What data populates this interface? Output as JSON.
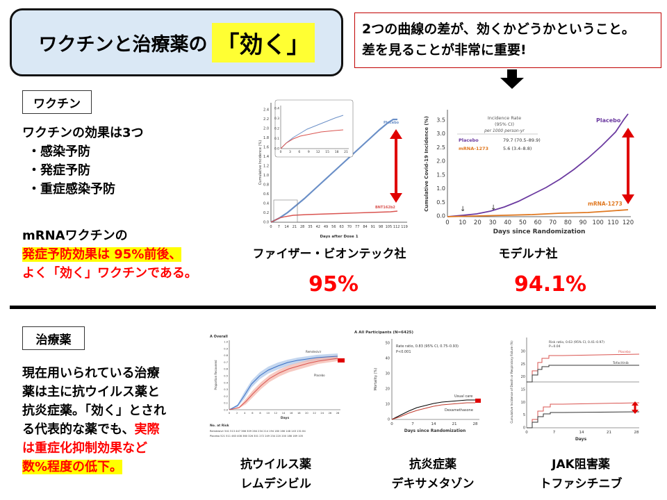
{
  "title": {
    "text": "ワクチンと治療薬の",
    "highlight": "「効く」"
  },
  "note": {
    "line1": "2つの曲線の差が、効くかどうかということ。",
    "line2": "差を見ることが非常に重要!"
  },
  "vaccine": {
    "label": "ワクチン",
    "intro": "ワクチンの効果は3つ",
    "effects": [
      "・感染予防",
      "・発症予防",
      "・重症感染予防"
    ],
    "mrna_line": "mRNAワクチンの",
    "mrna_red": "発症予防効果は 95%前後、",
    "mrna_red2": "よく「効く」ワクチンである。",
    "pfizer": {
      "name": "ファイザー・ビオンテック社",
      "efficacy": "95%"
    },
    "moderna": {
      "name": "モデルナ社",
      "efficacy": "94.1%"
    }
  },
  "treatment": {
    "label": "治療薬",
    "lines": [
      "現在用いられている治療",
      "薬は主に抗ウイルス薬と",
      "抗炎症薬。「効く」とされ",
      "る代表的な薬でも、"
    ],
    "red_inline": "実際",
    "red_lines": [
      "は重症化抑制効果など",
      "数%程度の低下。"
    ],
    "drugs": [
      {
        "category": "抗ウイルス薬",
        "name": "レムデシビル"
      },
      {
        "category": "抗炎症薬",
        "name": "デキサメタゾン"
      },
      {
        "category": "JAK阻害薬",
        "name": "トファシチニブ"
      }
    ]
  },
  "figures": {
    "pfizer_chart": {
      "ylabel": "Cumulative Incidence (%)",
      "xlabel": "Days after Dose 1",
      "yticks": [
        "0.0",
        "0.2",
        "0.4",
        "0.6",
        "0.8",
        "1.0",
        "1.2",
        "1.4",
        "1.6",
        "1.8",
        "2.0",
        "2.2",
        "2.4"
      ],
      "xticks": [
        "0",
        "7",
        "14",
        "21",
        "28",
        "35",
        "42",
        "49",
        "56",
        "63",
        "70",
        "77",
        "84",
        "91",
        "98",
        "105",
        "112",
        "119"
      ],
      "series_a": "Placebo",
      "series_b": "BNT162b2",
      "inset_yticks": [
        "0.0",
        "0.1",
        "0.2",
        "0.3",
        "0.4"
      ],
      "inset_xticks": [
        "0",
        "3",
        "6",
        "9",
        "12",
        "15",
        "18",
        "21"
      ]
    },
    "moderna_chart": {
      "ylabel": "Cumulative Covid-19 Incidence (%)",
      "xlabel": "Days since Randomization",
      "yticks": [
        "0.0",
        "0.5",
        "1.0",
        "1.5",
        "2.0",
        "2.5",
        "3.0",
        "3.5"
      ],
      "xticks": [
        "0",
        "10",
        "20",
        "30",
        "40",
        "50",
        "60",
        "70",
        "80",
        "90",
        "100",
        "110",
        "120"
      ],
      "series_a": "Placebo",
      "series_b": "mRNA-1273",
      "table_head1": "Incidence Rate",
      "table_head2": "(95% CI)",
      "table_head3": "per 1000 person-yr",
      "row_a_value": "79.7 (70.5–89.9)",
      "row_b_value": "5.6 (3.4–8.8)"
    },
    "remdesivir_chart": {
      "panel": "A  Overall",
      "ylabel": "Proportion Recovered",
      "xlabel": "Days",
      "series_a": "Remdesivir",
      "series_b": "Placebo",
      "yticks": [
        "0.0",
        "0.1",
        "0.2",
        "0.3",
        "0.4",
        "0.5",
        "0.6",
        "0.7",
        "0.8",
        "0.9",
        "1.0"
      ],
      "xticks": [
        "0",
        "2",
        "4",
        "6",
        "8",
        "10",
        "12",
        "14",
        "16",
        "18",
        "20",
        "22",
        "24",
        "26",
        "28"
      ],
      "risk_title": "No. at Risk",
      "risk_a": "Remdesivir  541 513 447 366 309 264 234 214 194 180 166 148 143 131  84",
      "risk_b": "Placebo       521 511 463 408 360 326 301 272 249 234 220 200 186 169 105"
    },
    "dexa_chart": {
      "panel": "A  All Participants (N=6425)",
      "ylabel": "Mortality (%)",
      "xlabel": "Days since Randomization",
      "stat1": "Rate ratio, 0.83 (95% CI, 0.75–0.93)",
      "stat2": "P<0.001",
      "series_a": "Usual care",
      "series_b": "Dexamethasone",
      "yticks": [
        "0",
        "10",
        "20",
        "30",
        "40",
        "50"
      ],
      "xticks": [
        "0",
        "7",
        "14",
        "21",
        "28"
      ]
    },
    "tofa_chart": {
      "ylabel": "Cumulative Incidence of Death or Respiratory Failure (%)",
      "xlabel": "Days",
      "stat1": "Risk ratio, 0.63 (95% CI, 0.41–0.97)",
      "stat2": "P=0.04",
      "series_a": "Placebo",
      "series_b": "Tofacitinib",
      "yticks": [
        "0",
        "5",
        "10",
        "15",
        "20",
        "25",
        "30",
        "100"
      ],
      "xticks": [
        "0",
        "7",
        "14",
        "21",
        "28"
      ]
    }
  }
}
